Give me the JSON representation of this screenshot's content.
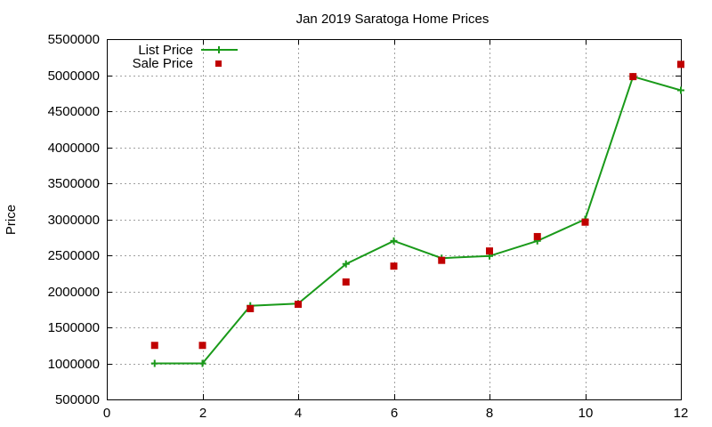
{
  "chart_data": {
    "type": "line",
    "title": "Jan 2019 Saratoga Home Prices",
    "xlabel": "",
    "ylabel": "Price",
    "xlim": [
      0,
      12
    ],
    "ylim": [
      500000,
      5500000
    ],
    "xticks": [
      0,
      2,
      4,
      6,
      8,
      10,
      12
    ],
    "yticks": [
      500000,
      1000000,
      1500000,
      2000000,
      2500000,
      3000000,
      3500000,
      4000000,
      4500000,
      5000000,
      5500000
    ],
    "grid": true,
    "legend_position": "top-left",
    "series": [
      {
        "name": "List Price",
        "style": "lines+points",
        "marker": "plus",
        "color": "#1a9a1a",
        "x": [
          1,
          2,
          3,
          4,
          5,
          6,
          7,
          8,
          9,
          10,
          11,
          12
        ],
        "values": [
          1000000,
          1000000,
          1800000,
          1830000,
          2380000,
          2700000,
          2460000,
          2490000,
          2700000,
          3000000,
          4980000,
          4790000
        ]
      },
      {
        "name": "Sale Price",
        "style": "points",
        "marker": "square",
        "color": "#c00000",
        "x": [
          1,
          2,
          3,
          4,
          5,
          6,
          7,
          8,
          9,
          10,
          11,
          12
        ],
        "values": [
          1250000,
          1250000,
          1760000,
          1820000,
          2130000,
          2350000,
          2430000,
          2560000,
          2760000,
          2960000,
          4980000,
          5150000
        ]
      }
    ]
  }
}
